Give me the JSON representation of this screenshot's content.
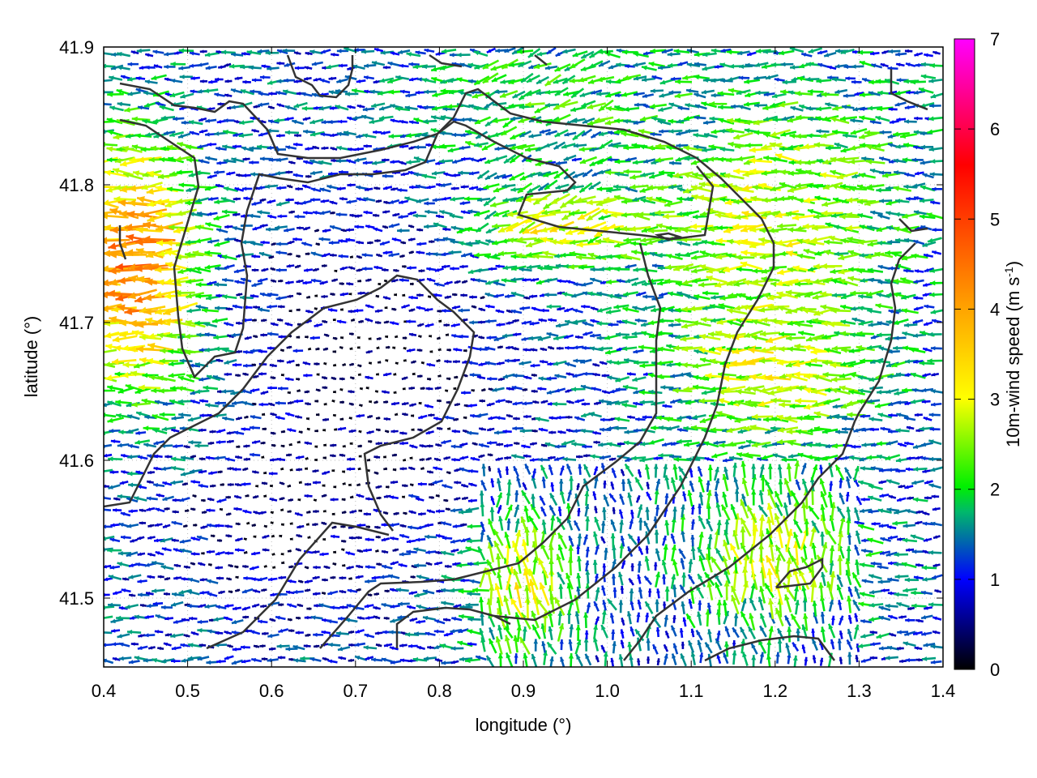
{
  "chart_data": {
    "type": "vector-field",
    "xlabel": "longitude (°)",
    "ylabel": "latitude (°)",
    "xlim": [
      0.4,
      1.4
    ],
    "ylim": [
      41.45,
      41.9
    ],
    "x_ticks": [
      "0.4",
      "0.5",
      "0.6",
      "0.7",
      "0.8",
      "0.9",
      "1.0",
      "1.1",
      "1.2",
      "1.3",
      "1.4"
    ],
    "y_ticks": [
      "41.5",
      "41.6",
      "41.7",
      "41.8",
      "41.9"
    ],
    "colorbar": {
      "label": "10m-wind speed (m s",
      "label_sup": "-1",
      "label_close": ")",
      "range": [
        0,
        7
      ],
      "ticks": [
        "0",
        "1",
        "2",
        "3",
        "4",
        "5",
        "6",
        "7"
      ],
      "colors": [
        "#000000",
        "#0000ff",
        "#00b86b",
        "#00f000",
        "#ffff00",
        "#ffa500",
        "#ff0000",
        "#ff00ff"
      ]
    },
    "grid": true,
    "wind_regions": [
      {
        "area": "west",
        "lon": [
          0.4,
          0.5
        ],
        "lat": [
          41.62,
          41.85
        ],
        "speed_ms": 4.5,
        "direction": "westward"
      },
      {
        "area": "central-basin",
        "lon": [
          0.6,
          1.05
        ],
        "lat": [
          41.5,
          41.8
        ],
        "speed_ms": 1.5,
        "direction": "westward"
      },
      {
        "area": "northeast",
        "lon": [
          0.9,
          1.4
        ],
        "lat": [
          41.6,
          41.85
        ],
        "speed_ms": 3.5,
        "direction": "westward"
      },
      {
        "area": "south",
        "lon": [
          0.85,
          1.3
        ],
        "lat": [
          41.45,
          41.6
        ],
        "speed_ms": 3.5,
        "direction": "northward"
      }
    ]
  }
}
